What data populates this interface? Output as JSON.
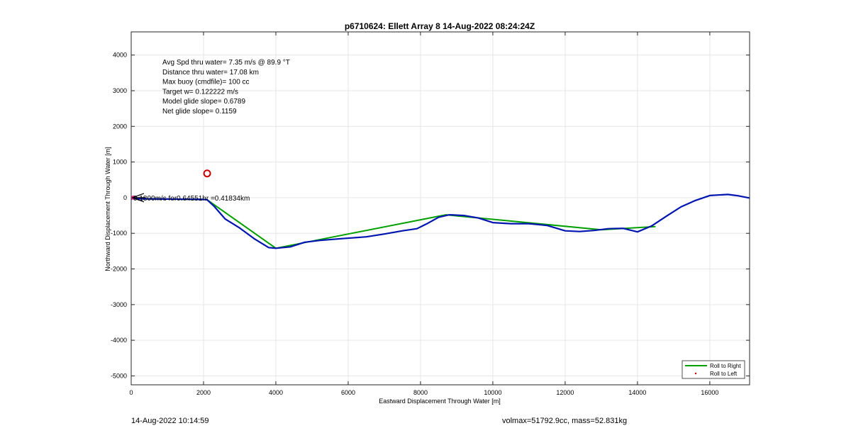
{
  "chart_data": {
    "type": "line",
    "title": "p6710624: Ellett Array 8 14-Aug-2022 08:24:24Z",
    "xlabel": "Eastward Displacement Through Water [m]",
    "ylabel": "Northward Displacement Through Water [m]",
    "xlim": [
      0,
      17100
    ],
    "ylim": [
      -5250,
      4650
    ],
    "xticks": [
      0,
      2000,
      4000,
      6000,
      8000,
      10000,
      12000,
      14000,
      16000
    ],
    "yticks": [
      -5000,
      -4000,
      -3000,
      -2000,
      -1000,
      0,
      1000,
      2000,
      3000,
      4000
    ],
    "grid": true,
    "legend_position": "bottom-right",
    "annotations": [
      "Avg Spd thru water=  7.35 m/s @  89.9 °T",
      "Distance thru water= 17.08 km",
      "Max buoy (cmdfile)= 100 cc",
      "Target w= 0.122222 m/s",
      "Model glide slope= 0.6789",
      "Net glide slope= 0.1159"
    ],
    "arrow_label": "0.1800m/s for0.64551hr =0.41834km",
    "circle_marker": {
      "x": 2100,
      "y": 680,
      "color": "#cc0000"
    },
    "series": [
      {
        "name": "Roll to Right",
        "color": "#00a000",
        "x": [
          0,
          2000,
          2100,
          4000,
          8700,
          13000,
          14500
        ],
        "y": [
          -30,
          -50,
          -60,
          -1420,
          -480,
          -900,
          -810
        ]
      },
      {
        "name": "Roll to Left",
        "color": "#cc0000",
        "x": [],
        "y": []
      },
      {
        "name": "",
        "color": "#0015b0",
        "x": [
          0,
          1000,
          2000,
          2100,
          2300,
          2600,
          3000,
          3400,
          3800,
          4000,
          4400,
          4800,
          5200,
          5800,
          6500,
          7000,
          7500,
          7900,
          8200,
          8500,
          8800,
          9200,
          9600,
          10000,
          10500,
          11000,
          11500,
          12000,
          12400,
          12800,
          13200,
          13600,
          14000,
          14400,
          14800,
          15200,
          15600,
          16000,
          16500,
          16800,
          17100
        ],
        "y": [
          -30,
          -40,
          -50,
          -60,
          -250,
          -600,
          -850,
          -1150,
          -1400,
          -1420,
          -1380,
          -1250,
          -1200,
          -1150,
          -1100,
          -1020,
          -930,
          -870,
          -720,
          -550,
          -480,
          -500,
          -570,
          -700,
          -730,
          -730,
          -780,
          -930,
          -950,
          -920,
          -870,
          -860,
          -960,
          -790,
          -520,
          -260,
          -80,
          60,
          90,
          50,
          -10
        ]
      }
    ]
  },
  "footer": {
    "timestamp": "14-Aug-2022 10:14:59",
    "volmax_mass": "volmax=51792.9cc, mass=52.831kg"
  }
}
